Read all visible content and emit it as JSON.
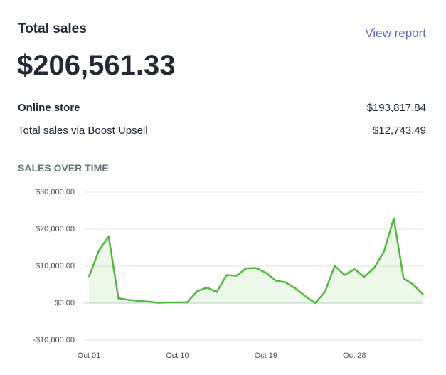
{
  "header": {
    "title": "Total sales",
    "link": "View report"
  },
  "total": "$206,561.33",
  "breakdown": [
    {
      "label": "Online store",
      "value": "$193,817.84"
    },
    {
      "label": "Total sales via Boost Upsell",
      "value": "$12,743.49"
    }
  ],
  "chart_data": {
    "type": "line",
    "title": "SALES OVER TIME",
    "categories": [
      "Oct 01",
      null,
      null,
      null,
      null,
      null,
      null,
      null,
      null,
      "Oct 10",
      null,
      null,
      null,
      null,
      null,
      null,
      null,
      null,
      "Oct 19",
      null,
      null,
      null,
      null,
      null,
      null,
      null,
      null,
      "Oct 28",
      null,
      null,
      null,
      null,
      null,
      null,
      null
    ],
    "values": [
      7100,
      14100,
      18100,
      1300,
      900,
      600,
      400,
      100,
      200,
      200,
      200,
      3200,
      4200,
      3000,
      7600,
      7400,
      9400,
      9500,
      8200,
      6100,
      5600,
      4000,
      1900,
      0,
      3000,
      10100,
      7600,
      9200,
      7100,
      9500,
      13900,
      22900,
      6700,
      5000,
      2300
    ],
    "color": "#50b83c",
    "ylim": [
      -10000,
      30000
    ],
    "yticks": [
      {
        "value": 30000,
        "label": "$30,000.00"
      },
      {
        "value": 20000,
        "label": "$20,000.00"
      },
      {
        "value": 10000,
        "label": "$10,000.00"
      },
      {
        "value": 0,
        "label": "$0.00"
      },
      {
        "value": -10000,
        "label": "-$10,000.00"
      }
    ],
    "grid": true
  }
}
